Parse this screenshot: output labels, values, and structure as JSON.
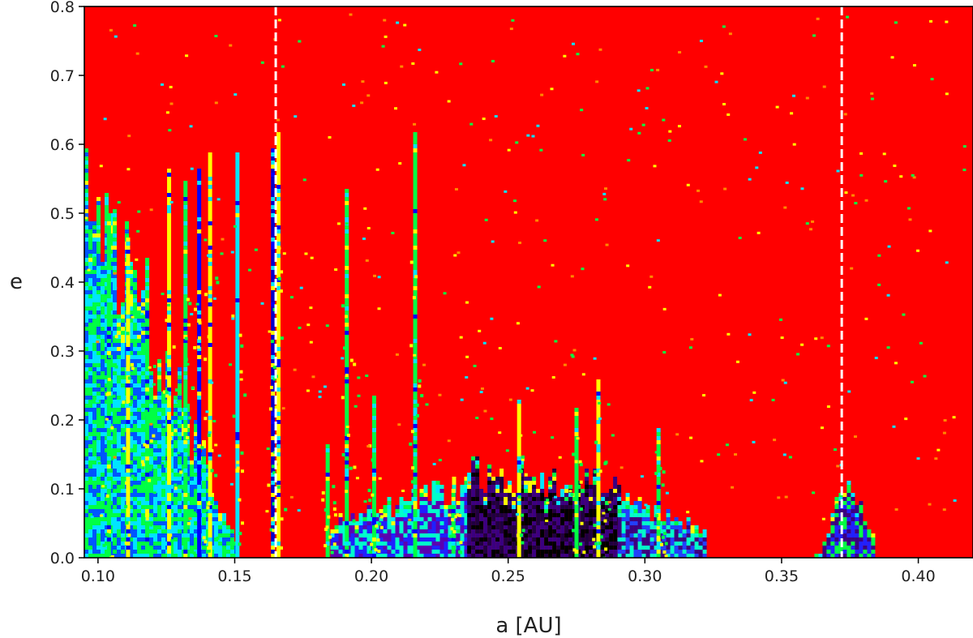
{
  "chart_data": {
    "type": "heatmap",
    "title": "",
    "xlabel": "a [AU]",
    "ylabel": "e",
    "xlim": [
      0.095,
      0.42
    ],
    "ylim": [
      0.0,
      0.8
    ],
    "x_ticks": [
      {
        "value": 0.1,
        "label": "0.10"
      },
      {
        "value": 0.15,
        "label": "0.15"
      },
      {
        "value": 0.2,
        "label": "0.20"
      },
      {
        "value": 0.25,
        "label": "0.25"
      },
      {
        "value": 0.3,
        "label": "0.30"
      },
      {
        "value": 0.35,
        "label": "0.35"
      },
      {
        "value": 0.4,
        "label": "0.40"
      }
    ],
    "y_ticks": [
      {
        "value": 0.0,
        "label": "0.0"
      },
      {
        "value": 0.1,
        "label": "0.1"
      },
      {
        "value": 0.2,
        "label": "0.2"
      },
      {
        "value": 0.3,
        "label": "0.3"
      },
      {
        "value": 0.4,
        "label": "0.4"
      },
      {
        "value": 0.5,
        "label": "0.5"
      },
      {
        "value": 0.6,
        "label": "0.6"
      },
      {
        "value": 0.7,
        "label": "0.7"
      },
      {
        "value": 0.8,
        "label": "0.8"
      }
    ],
    "background_color": "#ff0000",
    "reference_lines_a": [
      0.165,
      0.372
    ],
    "reference_line_color": "#ffffff",
    "stable_regions": [
      {
        "a_min": 0.095,
        "a_max": 0.15,
        "e_max_at_a_min": 0.55,
        "e_max_at_a_max": 0.02,
        "colors": [
          "#00e5ff",
          "#0055ff",
          "#00ff44"
        ]
      },
      {
        "a_min": 0.185,
        "a_max": 0.235,
        "e_max_at_a_min": 0.05,
        "e_max_at_a_max": 0.1,
        "colors": [
          "#2020ff",
          "#5a00b0",
          "#00ffcc"
        ]
      },
      {
        "a_min": 0.235,
        "a_max": 0.29,
        "e_max_at_a_min": 0.12,
        "e_max_at_a_max": 0.1,
        "colors": [
          "#000000",
          "#200040",
          "#3a0080"
        ]
      },
      {
        "a_min": 0.29,
        "a_max": 0.322,
        "e_max_at_a_min": 0.08,
        "e_max_at_a_max": 0.04,
        "colors": [
          "#3a0080",
          "#2040ff",
          "#00ffcc"
        ]
      },
      {
        "a_min": 0.362,
        "a_max": 0.384,
        "e_max_at_a_min": 0.0,
        "e_max_at_a_max": 0.0,
        "e_peak": 0.12,
        "colors": [
          "#2020ff",
          "#3a0080",
          "#00ff44"
        ]
      }
    ],
    "resonance_spikes": [
      {
        "a": 0.104,
        "e_max": 0.5,
        "color": "#00ff44"
      },
      {
        "a": 0.111,
        "e_max": 0.47,
        "color": "#ffff00"
      },
      {
        "a": 0.118,
        "e_max": 0.44,
        "color": "#00ff44"
      },
      {
        "a": 0.126,
        "e_max": 0.57,
        "color": "#ffff00"
      },
      {
        "a": 0.132,
        "e_max": 0.55,
        "color": "#00ff44"
      },
      {
        "a": 0.137,
        "e_max": 0.57,
        "color": "#0000ff"
      },
      {
        "a": 0.141,
        "e_max": 0.59,
        "color": "#ffff00"
      },
      {
        "a": 0.151,
        "e_max": 0.59,
        "color": "#00e5ff"
      },
      {
        "a": 0.164,
        "e_max": 0.6,
        "color": "#0000cc"
      },
      {
        "a": 0.166,
        "e_max": 0.62,
        "color": "#ffff00"
      },
      {
        "a": 0.184,
        "e_max": 0.17,
        "color": "#00ff44"
      },
      {
        "a": 0.191,
        "e_max": 0.54,
        "color": "#00ff44"
      },
      {
        "a": 0.201,
        "e_max": 0.24,
        "color": "#00ff44"
      },
      {
        "a": 0.216,
        "e_max": 0.62,
        "color": "#00ff44"
      },
      {
        "a": 0.23,
        "e_max": 0.1,
        "color": "#00ff44"
      },
      {
        "a": 0.254,
        "e_max": 0.23,
        "color": "#ffff00"
      },
      {
        "a": 0.275,
        "e_max": 0.22,
        "color": "#00ff44"
      },
      {
        "a": 0.283,
        "e_max": 0.26,
        "color": "#ffff00"
      },
      {
        "a": 0.305,
        "e_max": 0.19,
        "color": "#00ff44"
      }
    ]
  }
}
